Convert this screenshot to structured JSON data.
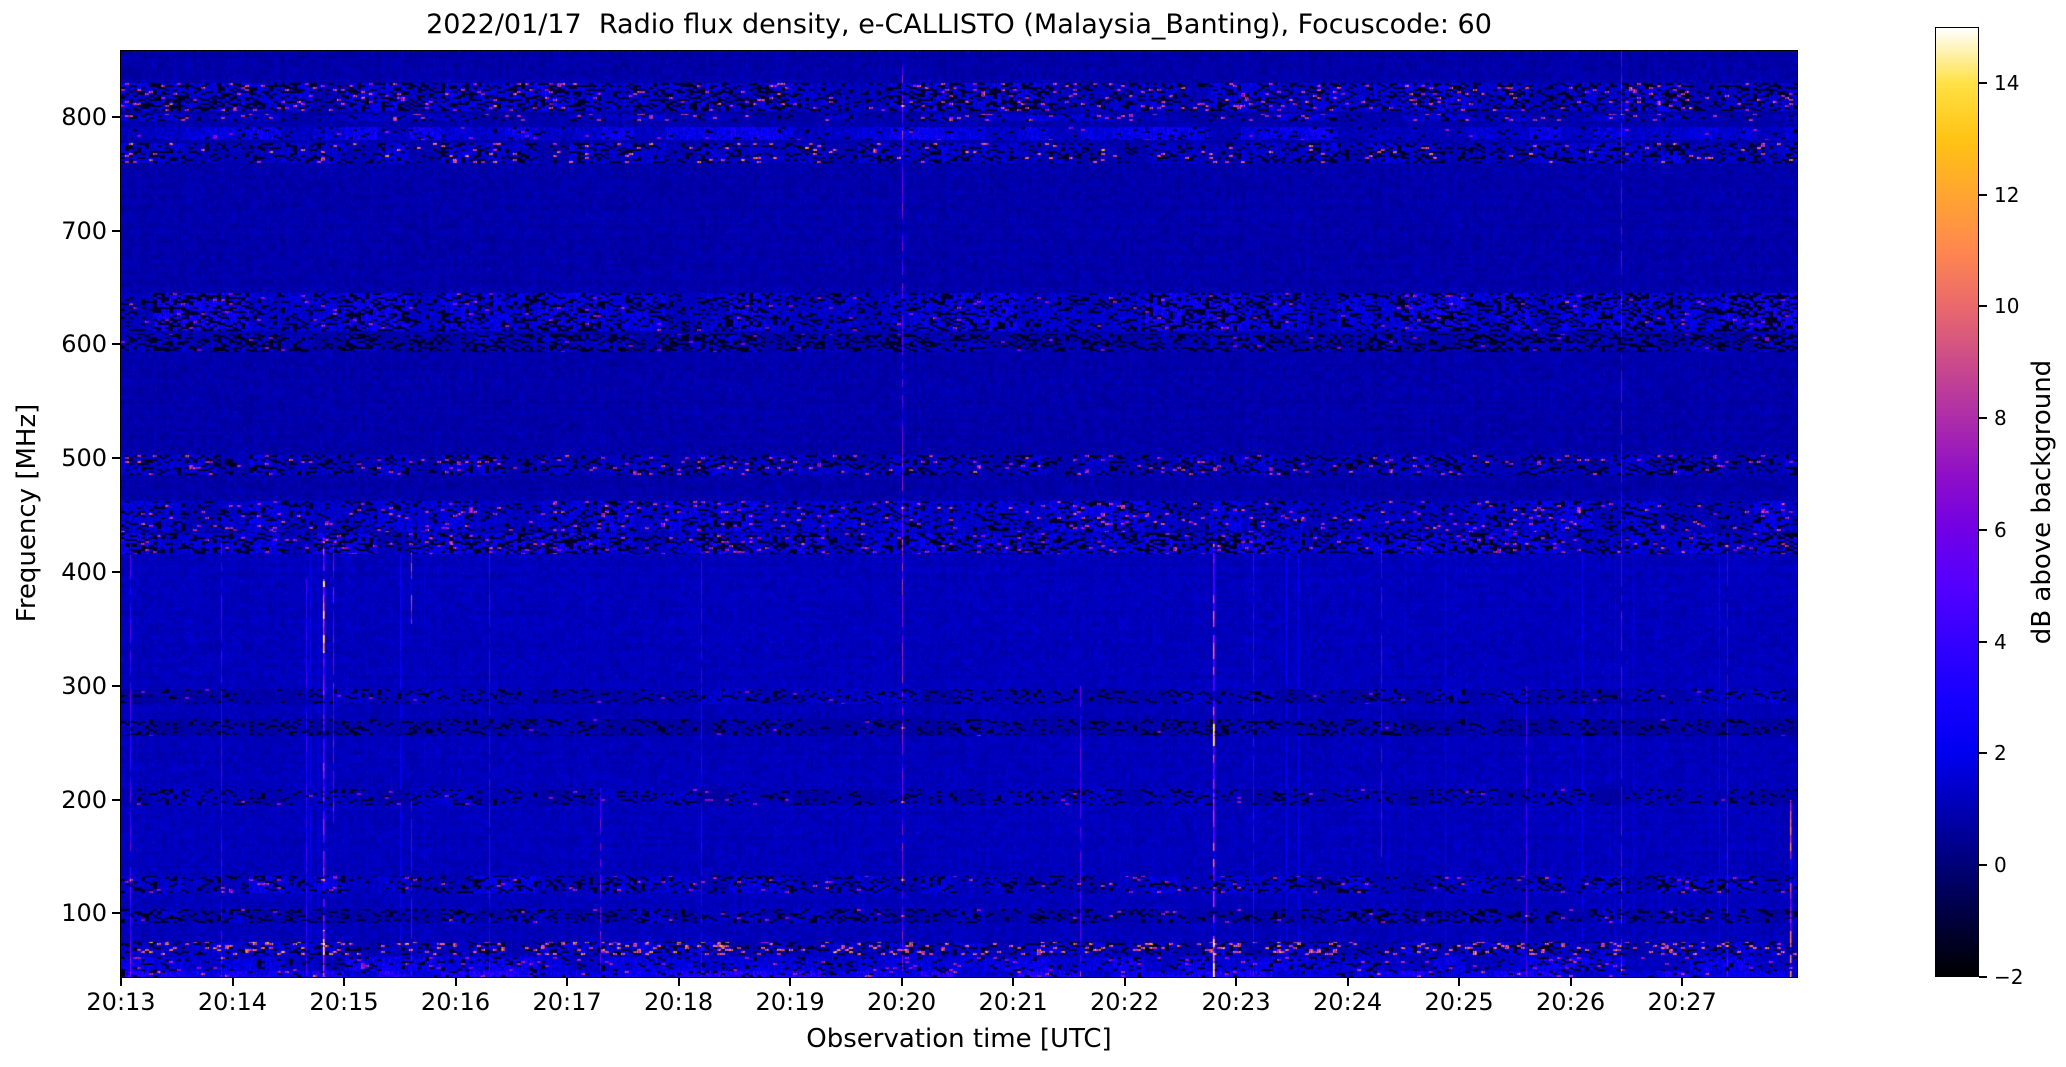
{
  "figure": {
    "title": "2022/01/17  Radio flux density, e-CALLISTO (Malaysia_Banting), Focuscode: 60",
    "xlabel": "Observation time [UTC]",
    "ylabel": "Frequency [MHz]",
    "colorbar_label": "dB above background"
  },
  "chart_data": {
    "type": "heatmap",
    "subtype": "radio-spectrogram",
    "title": "2022/01/17  Radio flux density, e-CALLISTO (Malaysia_Banting), Focuscode: 60",
    "xlabel": "Observation time [UTC]",
    "ylabel": "Frequency [MHz]",
    "x_start_label": "20:13",
    "x_duration_minutes": 15.03,
    "x_ticks": [
      {
        "m": 0,
        "label": "20:13"
      },
      {
        "m": 1,
        "label": "20:14"
      },
      {
        "m": 2,
        "label": "20:15"
      },
      {
        "m": 3,
        "label": "20:16"
      },
      {
        "m": 4,
        "label": "20:17"
      },
      {
        "m": 5,
        "label": "20:18"
      },
      {
        "m": 6,
        "label": "20:19"
      },
      {
        "m": 7,
        "label": "20:20"
      },
      {
        "m": 8,
        "label": "20:21"
      },
      {
        "m": 9,
        "label": "20:22"
      },
      {
        "m": 10,
        "label": "20:23"
      },
      {
        "m": 11,
        "label": "20:24"
      },
      {
        "m": 12,
        "label": "20:25"
      },
      {
        "m": 13,
        "label": "20:26"
      },
      {
        "m": 14,
        "label": "20:27"
      }
    ],
    "y_range_mhz": [
      44,
      858
    ],
    "y_ticks": [
      {
        "v": 800,
        "label": "800"
      },
      {
        "v": 700,
        "label": "700"
      },
      {
        "v": 600,
        "label": "600"
      },
      {
        "v": 500,
        "label": "500"
      },
      {
        "v": 400,
        "label": "400"
      },
      {
        "v": 300,
        "label": "300"
      },
      {
        "v": 200,
        "label": "200"
      },
      {
        "v": 100,
        "label": "100"
      }
    ],
    "color_scale": {
      "label": "dB above background",
      "range_db": [
        -2,
        15
      ],
      "colormap": "gnuplot2",
      "ticks": [
        {
          "v": 14,
          "label": "14"
        },
        {
          "v": 12,
          "label": "12"
        },
        {
          "v": 10,
          "label": "10"
        },
        {
          "v": 8,
          "label": "8"
        },
        {
          "v": 6,
          "label": "6"
        },
        {
          "v": 4,
          "label": "4"
        },
        {
          "v": 2,
          "label": "2"
        },
        {
          "v": 0,
          "label": "0"
        },
        {
          "v": -2,
          "label": "−2"
        }
      ],
      "stops": [
        {
          "v": -2,
          "hex": "#000000"
        },
        {
          "v": -1,
          "hex": "#00003c"
        },
        {
          "v": 0,
          "hex": "#000078"
        },
        {
          "v": 1,
          "hex": "#0000b4"
        },
        {
          "v": 2,
          "hex": "#0000f0"
        },
        {
          "v": 3,
          "hex": "#1600ff"
        },
        {
          "v": 4,
          "hex": "#3400ff"
        },
        {
          "v": 5,
          "hex": "#5300ff"
        },
        {
          "v": 6,
          "hex": "#7100e5"
        },
        {
          "v": 7,
          "hex": "#8f0fc7"
        },
        {
          "v": 8,
          "hex": "#ad2da9"
        },
        {
          "v": 9,
          "hex": "#cb4b8b"
        },
        {
          "v": 10,
          "hex": "#e9696d"
        },
        {
          "v": 11,
          "hex": "#ff874f"
        },
        {
          "v": 12,
          "hex": "#ffa531"
        },
        {
          "v": 13,
          "hex": "#ffc313"
        },
        {
          "v": 14,
          "hex": "#ffe144"
        },
        {
          "v": 15,
          "hex": "#ffffff"
        }
      ]
    },
    "background": {
      "split_mhz": 420,
      "base_db_above_split": 0.22,
      "base_db_below_split": 0.48,
      "faint_vertical_lines_below_split": true
    },
    "rfi_bands": [
      {
        "f_low": 806,
        "f_high": 830,
        "black_frac": 0.32,
        "bright_amp": 0.5,
        "hot_frac": 0.05,
        "hot_db": [
          6,
          13
        ]
      },
      {
        "f_low": 797,
        "f_high": 803,
        "black_frac": 0.12,
        "bright_amp": 0.35,
        "hot_frac": 0.05,
        "hot_db": [
          7,
          11
        ]
      },
      {
        "f_low": 780,
        "f_high": 792,
        "black_frac": 0.06,
        "bright_amp": 0.55,
        "hot_frac": 0.012,
        "hot_db": [
          6,
          9
        ]
      },
      {
        "f_low": 760,
        "f_high": 778,
        "black_frac": 0.24,
        "bright_amp": 0.4,
        "hot_frac": 0.03,
        "hot_db": [
          7,
          14
        ]
      },
      {
        "f_low": 612,
        "f_high": 646,
        "black_frac": 0.3,
        "bright_amp": 0.6,
        "hot_frac": 0.015,
        "hot_db": [
          6,
          10
        ]
      },
      {
        "f_low": 594,
        "f_high": 610,
        "black_frac": 0.38,
        "bright_amp": 0.35,
        "hot_frac": 0.008,
        "hot_db": [
          6,
          8
        ]
      },
      {
        "f_low": 486,
        "f_high": 503,
        "black_frac": 0.26,
        "bright_amp": 0.4,
        "hot_frac": 0.04,
        "hot_db": [
          6,
          12
        ]
      },
      {
        "f_low": 436,
        "f_high": 463,
        "black_frac": 0.2,
        "bright_amp": 0.5,
        "hot_frac": 0.04,
        "hot_db": [
          6,
          12
        ]
      },
      {
        "f_low": 416,
        "f_high": 435,
        "black_frac": 0.32,
        "bright_amp": 0.6,
        "hot_frac": 0.035,
        "hot_db": [
          6,
          11
        ]
      },
      {
        "f_low": 284,
        "f_high": 298,
        "black_frac": 0.16,
        "bright_amp": 0.3,
        "hot_frac": 0.006,
        "hot_db": [
          6,
          8
        ]
      },
      {
        "f_low": 256,
        "f_high": 271,
        "black_frac": 0.2,
        "bright_amp": 0.22,
        "hot_frac": 0.004,
        "hot_db": [
          6,
          8
        ]
      },
      {
        "f_low": 196,
        "f_high": 210,
        "black_frac": 0.14,
        "bright_amp": 0.28,
        "hot_frac": 0.008,
        "hot_db": [
          6,
          9
        ]
      },
      {
        "f_low": 118,
        "f_high": 133,
        "black_frac": 0.22,
        "bright_amp": 0.45,
        "hot_frac": 0.025,
        "hot_db": [
          6,
          11
        ]
      },
      {
        "f_low": 92,
        "f_high": 104,
        "black_frac": 0.26,
        "bright_amp": 0.32,
        "hot_frac": 0.015,
        "hot_db": [
          6,
          10
        ]
      },
      {
        "f_low": 64,
        "f_high": 75,
        "black_frac": 0.22,
        "bright_amp": 0.45,
        "hot_frac": 0.12,
        "hot_db": [
          7,
          15
        ]
      },
      {
        "f_low": 50,
        "f_high": 62,
        "black_frac": 0.12,
        "bright_amp": 0.55,
        "hot_frac": 0.025,
        "hot_db": [
          6,
          10
        ]
      },
      {
        "f_low": 44,
        "f_high": 50,
        "black_frac": 0.08,
        "bright_amp": 0.8,
        "hot_frac": 0.03,
        "hot_db": [
          6,
          12
        ]
      }
    ],
    "vertical_streaks": [
      {
        "t_min": 0.08,
        "f": [
          44,
          425
        ],
        "db": 5.0,
        "w": 1
      },
      {
        "t_min": 0.9,
        "f": [
          44,
          430
        ],
        "db": 4.0,
        "w": 1
      },
      {
        "t_min": 1.66,
        "f": [
          44,
          425
        ],
        "db": 3.5,
        "w": 1
      },
      {
        "t_min": 1.81,
        "f": [
          44,
          430
        ],
        "db": 7.0,
        "w": 2
      },
      {
        "t_min": 1.81,
        "f": [
          330,
          392
        ],
        "db": 14.5,
        "w": 2
      },
      {
        "t_min": 1.81,
        "f": [
          44,
          85
        ],
        "db": 12.0,
        "w": 2
      },
      {
        "t_min": 1.9,
        "f": [
          180,
          425
        ],
        "db": 6.0,
        "w": 1
      },
      {
        "t_min": 2.6,
        "f": [
          355,
          418
        ],
        "db": 8.0,
        "w": 1
      },
      {
        "t_min": 2.6,
        "f": [
          44,
          200
        ],
        "db": 4.0,
        "w": 1
      },
      {
        "t_min": 3.3,
        "f": [
          44,
          418
        ],
        "db": 3.5,
        "w": 1
      },
      {
        "t_min": 4.3,
        "f": [
          44,
          210
        ],
        "db": 6.0,
        "w": 1
      },
      {
        "t_min": 5.2,
        "f": [
          44,
          425
        ],
        "db": 3.0,
        "w": 1
      },
      {
        "t_min": 7.0,
        "f": [
          44,
          858
        ],
        "db": 6.5,
        "w": 1
      },
      {
        "t_min": 8.6,
        "f": [
          44,
          300
        ],
        "db": 5.0,
        "w": 1
      },
      {
        "t_min": 9.79,
        "f": [
          44,
          425
        ],
        "db": 9.0,
        "w": 2
      },
      {
        "t_min": 9.79,
        "f": [
          44,
          80
        ],
        "db": 14.0,
        "w": 2
      },
      {
        "t_min": 9.79,
        "f": [
          248,
          266
        ],
        "db": 13.0,
        "w": 2
      },
      {
        "t_min": 10.15,
        "f": [
          44,
          420
        ],
        "db": 3.5,
        "w": 1
      },
      {
        "t_min": 11.3,
        "f": [
          150,
          420
        ],
        "db": 4.5,
        "w": 1
      },
      {
        "t_min": 12.6,
        "f": [
          44,
          300
        ],
        "db": 4.0,
        "w": 1
      },
      {
        "t_min": 13.45,
        "f": [
          44,
          858
        ],
        "db": 5.0,
        "w": 1
      },
      {
        "t_min": 14.4,
        "f": [
          44,
          425
        ],
        "db": 3.5,
        "w": 1
      },
      {
        "t_min": 14.97,
        "f": [
          44,
          200
        ],
        "db": 10.0,
        "w": 2
      }
    ]
  }
}
